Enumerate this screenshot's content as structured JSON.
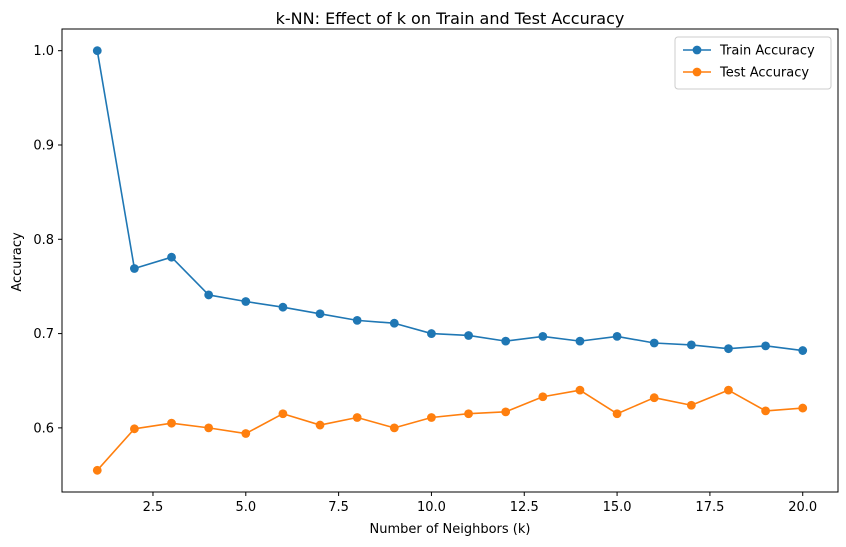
{
  "chart_data": {
    "type": "line",
    "title": "k-NN: Effect of k on Train and Test Accuracy",
    "xlabel": "Number of Neighbors (k)",
    "ylabel": "Accuracy",
    "xlim": [
      0.05,
      20.95
    ],
    "ylim": [
      0.532,
      1.023
    ],
    "x_ticks": [
      "2.5",
      "5.0",
      "7.5",
      "10.0",
      "12.5",
      "15.0",
      "17.5",
      "20.0"
    ],
    "y_ticks": [
      "0.6",
      "0.7",
      "0.8",
      "0.9",
      "1.0"
    ],
    "grid": false,
    "legend_position": "top-right",
    "x": [
      1,
      2,
      3,
      4,
      5,
      6,
      7,
      8,
      9,
      10,
      11,
      12,
      13,
      14,
      15,
      16,
      17,
      18,
      19,
      20
    ],
    "series": [
      {
        "name": "Train Accuracy",
        "color": "#1f77b4",
        "marker": "circle",
        "values": [
          1.0,
          0.769,
          0.781,
          0.741,
          0.734,
          0.728,
          0.721,
          0.714,
          0.711,
          0.7,
          0.698,
          0.692,
          0.697,
          0.692,
          0.697,
          0.69,
          0.688,
          0.684,
          0.687,
          0.682
        ]
      },
      {
        "name": "Test Accuracy",
        "color": "#ff7f0e",
        "marker": "circle",
        "values": [
          0.555,
          0.599,
          0.605,
          0.6,
          0.594,
          0.615,
          0.603,
          0.611,
          0.6,
          0.611,
          0.615,
          0.617,
          0.633,
          0.64,
          0.615,
          0.632,
          0.624,
          0.64,
          0.618,
          0.621
        ]
      }
    ]
  }
}
